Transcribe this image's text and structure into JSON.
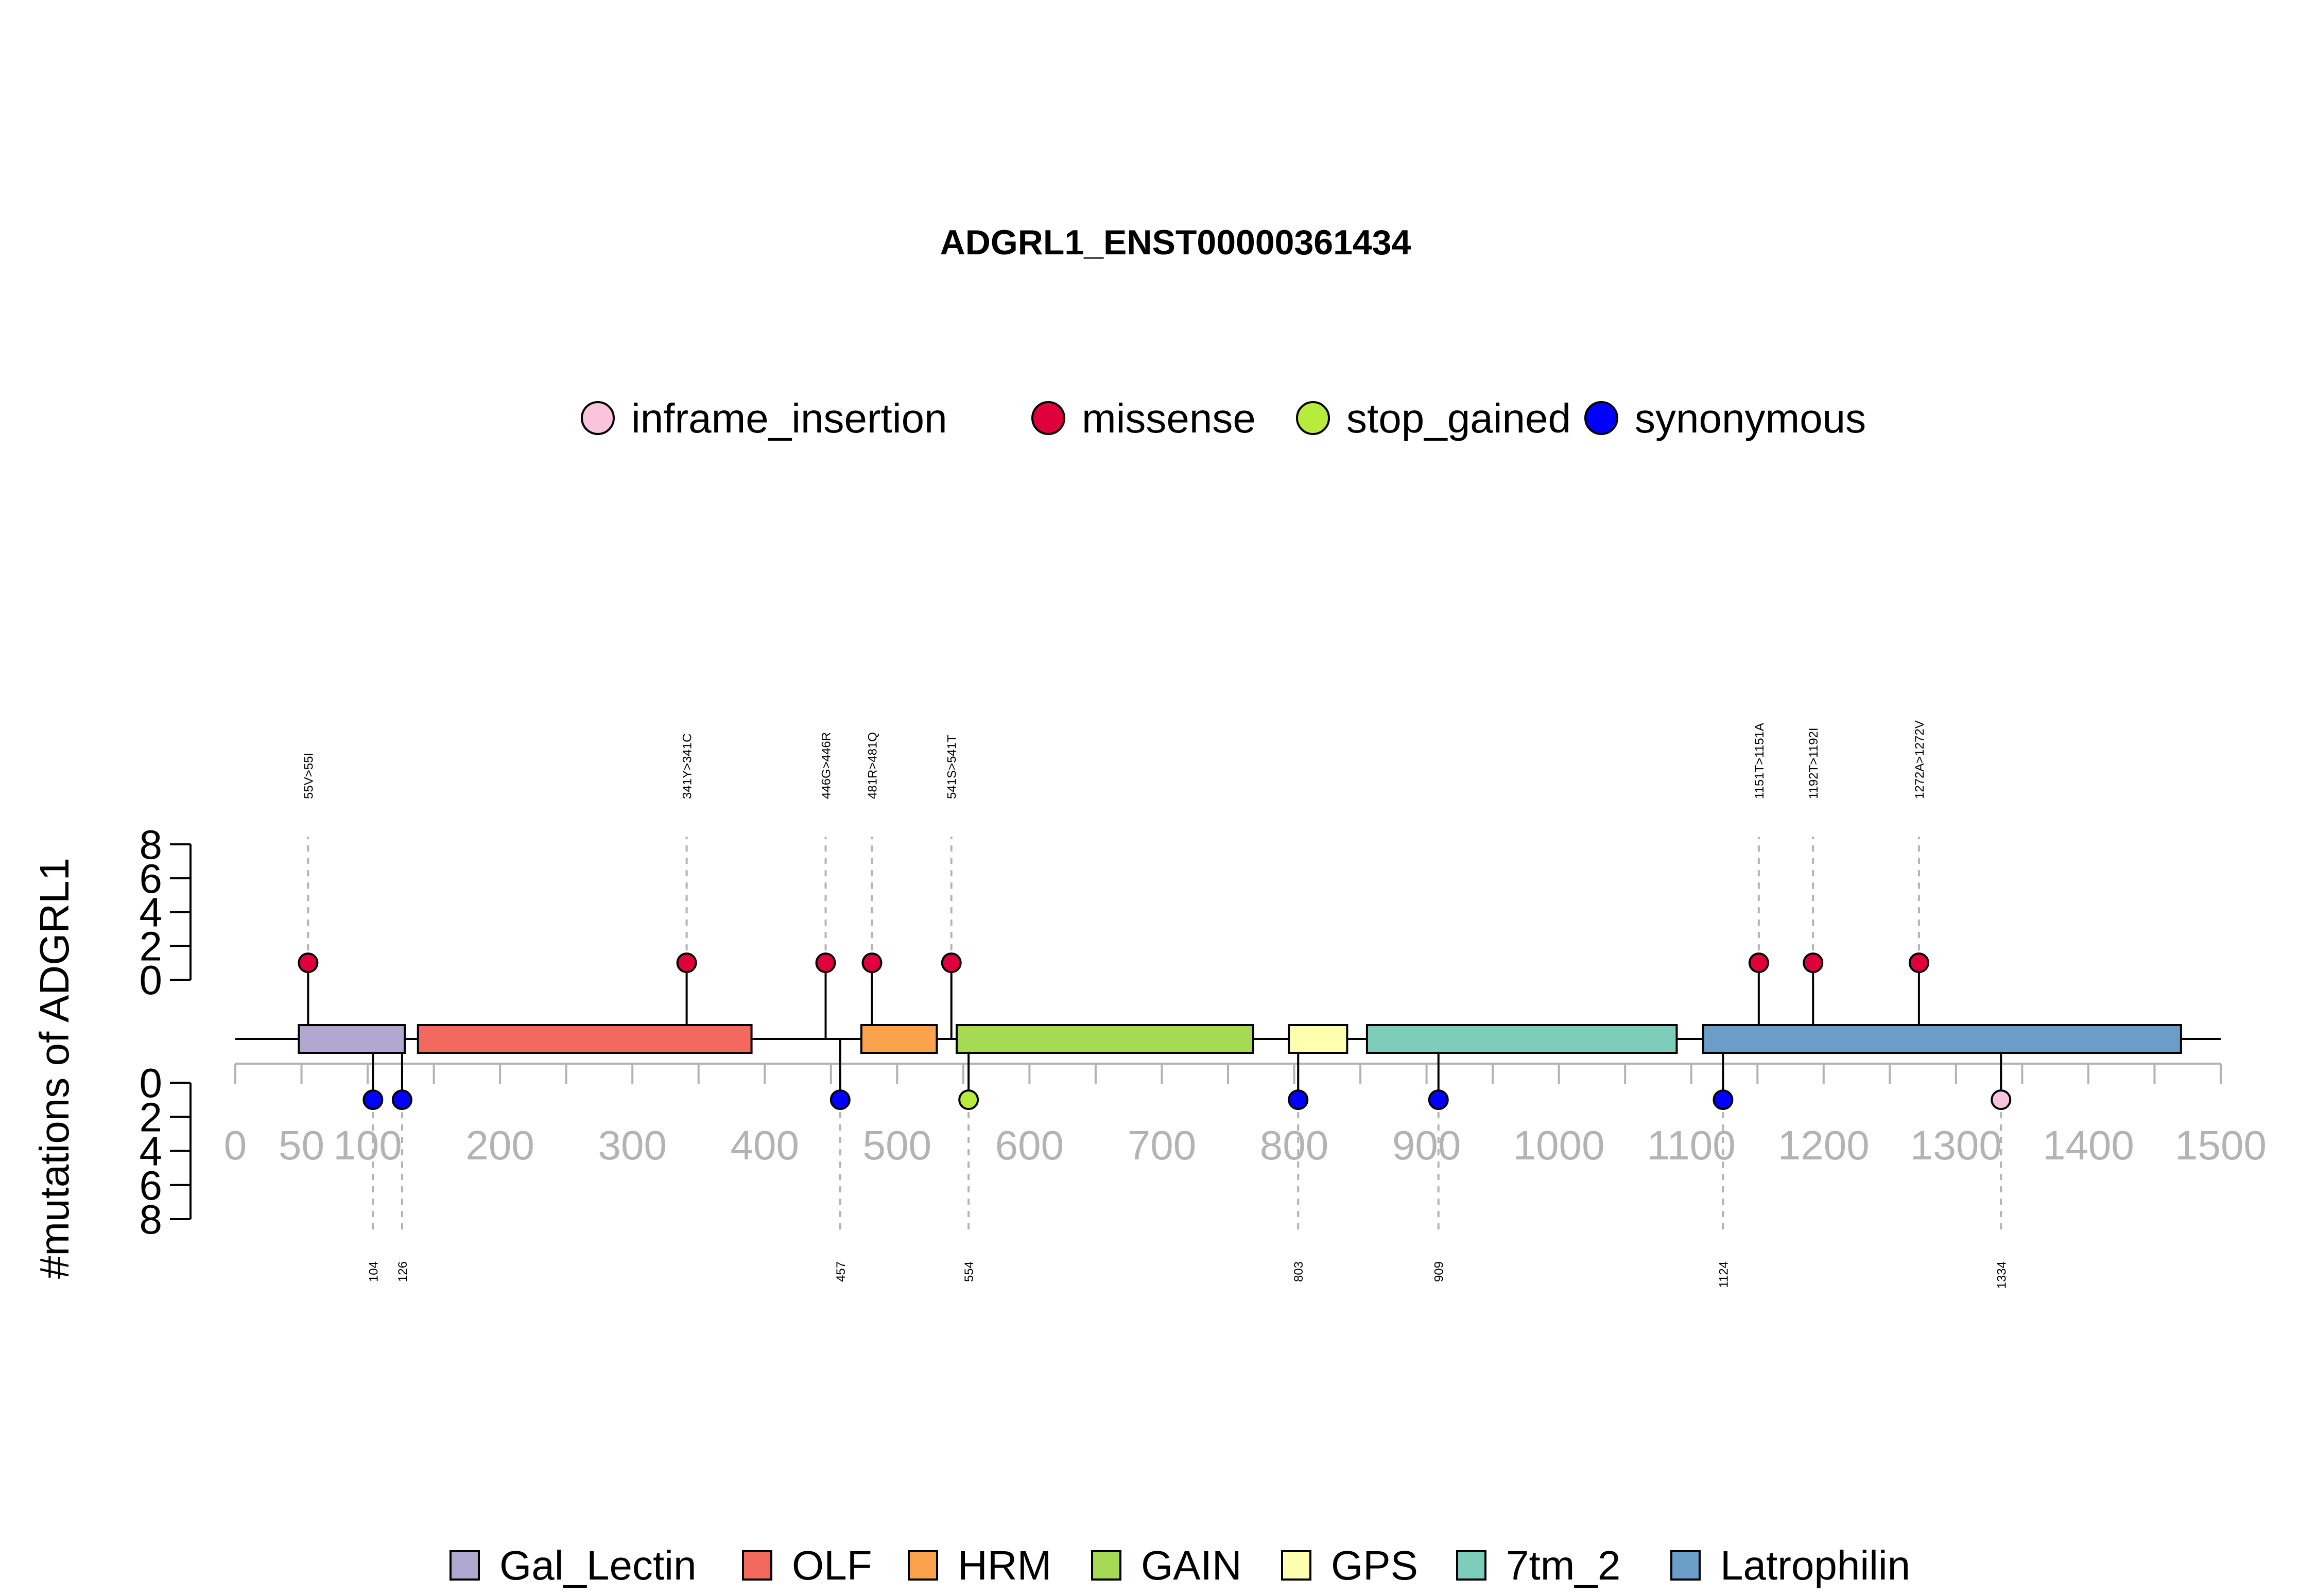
{
  "chart_data": {
    "type": "lollipop",
    "title": "ADGRL1_ENST00000361434",
    "ylabel": "#mutations of ADGRL1",
    "xlim": [
      0,
      1500
    ],
    "x_ticks": [
      0,
      50,
      100,
      200,
      300,
      400,
      500,
      600,
      700,
      800,
      900,
      1000,
      1100,
      1200,
      1300,
      1400,
      1500
    ],
    "y_ticks_top": [
      0,
      2,
      4,
      6,
      8
    ],
    "y_ticks_bottom": [
      0,
      2,
      4,
      6,
      8
    ],
    "mutation_legend": [
      {
        "name": "inframe_insertion",
        "color": "#f9c4dc"
      },
      {
        "name": "missense",
        "color": "#e0003c"
      },
      {
        "name": "stop_gained",
        "color": "#b8ec3c"
      },
      {
        "name": "synonymous",
        "color": "#0000ff"
      }
    ],
    "domains": [
      {
        "name": "Gal_Lectin",
        "start": 48,
        "end": 128,
        "color": "#b0a8d0"
      },
      {
        "name": "OLF",
        "start": 138,
        "end": 390,
        "color": "#f4695e"
      },
      {
        "name": "HRM",
        "start": 473,
        "end": 530,
        "color": "#fba24c"
      },
      {
        "name": "GAIN",
        "start": 545,
        "end": 769,
        "color": "#a6d954"
      },
      {
        "name": "GPS",
        "start": 796,
        "end": 840,
        "color": "#ffffb0"
      },
      {
        "name": "7tm_2",
        "start": 855,
        "end": 1089,
        "color": "#7ecdbb"
      },
      {
        "name": "Latrophilin",
        "start": 1109,
        "end": 1470,
        "color": "#6a9ec8"
      }
    ],
    "domain_legend_order": [
      "Gal_Lectin",
      "OLF",
      "HRM",
      "GAIN",
      "GPS",
      "7tm_2",
      "Latrophilin"
    ],
    "mutations_top": [
      {
        "pos": 55,
        "count": 1,
        "type": "missense",
        "label": "55V>55I"
      },
      {
        "pos": 341,
        "count": 1,
        "type": "missense",
        "label": "341Y>341C"
      },
      {
        "pos": 446,
        "count": 1,
        "type": "missense",
        "label": "446G>446R"
      },
      {
        "pos": 481,
        "count": 1,
        "type": "missense",
        "label": "481R>481Q"
      },
      {
        "pos": 541,
        "count": 1,
        "type": "missense",
        "label": "541S>541T"
      },
      {
        "pos": 1151,
        "count": 1,
        "type": "missense",
        "label": "1151T>1151A"
      },
      {
        "pos": 1192,
        "count": 1,
        "type": "missense",
        "label": "1192T>1192I"
      },
      {
        "pos": 1272,
        "count": 1,
        "type": "missense",
        "label": "1272A>1272V"
      }
    ],
    "mutations_bottom": [
      {
        "pos": 104,
        "count": 1,
        "type": "synonymous",
        "label": "104"
      },
      {
        "pos": 126,
        "count": 1,
        "type": "synonymous",
        "label": "126"
      },
      {
        "pos": 457,
        "count": 1,
        "type": "synonymous",
        "label": "457"
      },
      {
        "pos": 554,
        "count": 1,
        "type": "stop_gained",
        "label": "554"
      },
      {
        "pos": 803,
        "count": 1,
        "type": "synonymous",
        "label": "803"
      },
      {
        "pos": 909,
        "count": 1,
        "type": "synonymous",
        "label": "909"
      },
      {
        "pos": 1124,
        "count": 1,
        "type": "synonymous",
        "label": "1124"
      },
      {
        "pos": 1334,
        "count": 1,
        "type": "inframe_insertion",
        "label": "1334"
      }
    ]
  }
}
